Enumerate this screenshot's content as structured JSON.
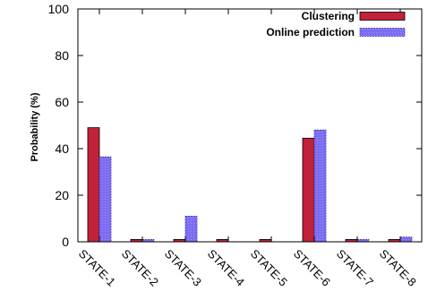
{
  "chart_data": {
    "type": "bar",
    "ylabel": "Probability (%)",
    "xlabel": "",
    "ylim": [
      0,
      100
    ],
    "yticks": [
      0,
      20,
      40,
      60,
      80,
      100
    ],
    "grid": false,
    "legend_position": "top-right",
    "categories": [
      "STATE-1",
      "STATE-2",
      "STATE-3",
      "STATE-4",
      "STATE-5",
      "STATE-6",
      "STATE-7",
      "STATE-8"
    ],
    "series": [
      {
        "name": "Clustering",
        "color": "#c2213a",
        "values": [
          49,
          1,
          1,
          1,
          1,
          44.5,
          1,
          1
        ]
      },
      {
        "name": "Online prediction",
        "color": "#7b6cf2",
        "values": [
          36.5,
          1,
          11,
          0,
          0,
          48,
          1,
          2
        ]
      }
    ]
  }
}
